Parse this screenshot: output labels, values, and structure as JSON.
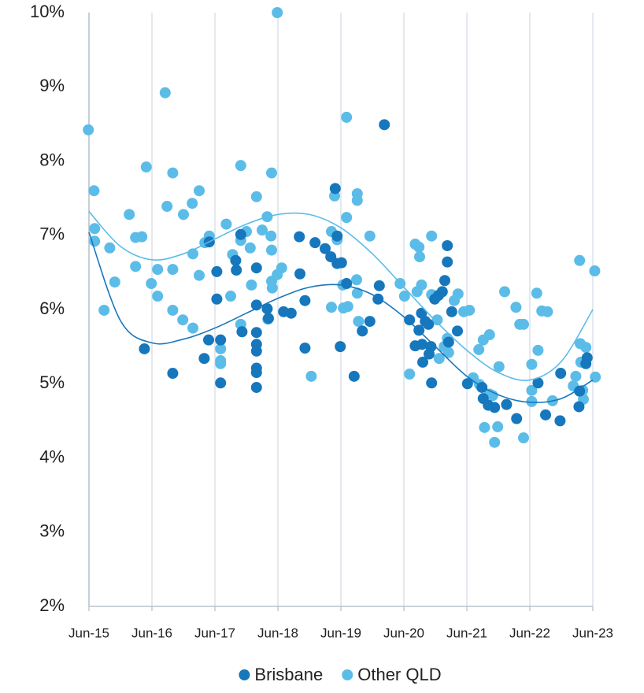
{
  "chart_data": {
    "type": "scatter",
    "xlim": [
      2015.5,
      2023.5
    ],
    "xticks": [
      {
        "value": 2015.5,
        "label": "Jun-15"
      },
      {
        "value": 2016.5,
        "label": "Jun-16"
      },
      {
        "value": 2017.5,
        "label": "Jun-17"
      },
      {
        "value": 2018.5,
        "label": "Jun-18"
      },
      {
        "value": 2019.5,
        "label": "Jun-19"
      },
      {
        "value": 2020.5,
        "label": "Jun-20"
      },
      {
        "value": 2021.5,
        "label": "Jun-21"
      },
      {
        "value": 2022.5,
        "label": "Jun-22"
      },
      {
        "value": 2023.5,
        "label": "Jun-23"
      }
    ],
    "ylim": [
      2,
      10
    ],
    "yticks": [
      {
        "value": 2,
        "label": "2%"
      },
      {
        "value": 3,
        "label": "3%"
      },
      {
        "value": 4,
        "label": "4%"
      },
      {
        "value": 5,
        "label": "5%"
      },
      {
        "value": 6,
        "label": "6%"
      },
      {
        "value": 7,
        "label": "7%"
      },
      {
        "value": 8,
        "label": "8%"
      },
      {
        "value": 9,
        "label": "9%"
      },
      {
        "value": 10,
        "label": "10%"
      }
    ],
    "grid": "vertical",
    "legend": "bottom",
    "series": [
      {
        "name": "Other QLD",
        "color": "#5bbce8",
        "x": [
          2015.49,
          2015.58,
          2015.59,
          2015.59,
          2015.74,
          2015.83,
          2015.91,
          2016.14,
          2016.24,
          2016.24,
          2016.34,
          2016.41,
          2016.49,
          2016.59,
          2016.59,
          2016.71,
          2016.74,
          2016.83,
          2016.83,
          2016.83,
          2016.99,
          2017.0,
          2017.14,
          2017.15,
          2017.15,
          2017.25,
          2017.25,
          2017.34,
          2017.41,
          2017.59,
          2017.59,
          2017.59,
          2017.68,
          2017.75,
          2017.78,
          2017.91,
          2017.91,
          2017.91,
          2018.0,
          2018.06,
          2018.08,
          2018.16,
          2018.25,
          2018.33,
          2018.34,
          2018.39,
          2018.4,
          2018.4,
          2018.4,
          2018.41,
          2018.49,
          2018.49,
          2018.56,
          2019.03,
          2019.35,
          2019.35,
          2019.4,
          2019.44,
          2019.53,
          2019.54,
          2019.59,
          2019.59,
          2019.61,
          2019.75,
          2019.76,
          2019.76,
          2019.76,
          2019.78,
          2019.96,
          2020.44,
          2020.51,
          2020.59,
          2020.68,
          2020.71,
          2020.74,
          2020.75,
          2020.78,
          2020.94,
          2020.94,
          2021.03,
          2021.06,
          2021.14,
          2021.19,
          2021.21,
          2021.3,
          2021.36,
          2021.45,
          2021.54,
          2021.6,
          2021.69,
          2021.7,
          2021.76,
          2021.78,
          2021.86,
          2021.86,
          2021.91,
          2021.94,
          2021.99,
          2022.01,
          2022.1,
          2022.28,
          2022.34,
          2022.4,
          2022.4,
          2022.53,
          2022.53,
          2022.53,
          2022.61,
          2022.63,
          2022.69,
          2022.78,
          2022.86,
          2023.19,
          2023.23,
          2023.29,
          2023.3,
          2023.31,
          2023.34,
          2023.35,
          2023.39,
          2023.53,
          2023.54
        ],
        "values": [
          8.42,
          7.6,
          7.09,
          6.92,
          5.99,
          6.83,
          6.37,
          7.28,
          6.58,
          6.97,
          6.98,
          7.92,
          6.35,
          6.18,
          6.54,
          8.92,
          7.39,
          7.84,
          6.54,
          5.99,
          5.86,
          7.28,
          7.43,
          5.75,
          6.75,
          7.6,
          6.46,
          6.9,
          6.99,
          5.31,
          5.27,
          5.47,
          7.15,
          6.18,
          6.74,
          7.94,
          6.93,
          5.8,
          7.05,
          6.83,
          6.33,
          7.52,
          7.07,
          7.25,
          5.87,
          6.99,
          7.84,
          6.8,
          6.38,
          6.29,
          10.0,
          6.47,
          6.56,
          5.1,
          7.05,
          6.03,
          7.53,
          6.94,
          6.33,
          6.02,
          8.59,
          7.24,
          6.04,
          6.4,
          7.56,
          7.47,
          6.22,
          5.84,
          6.99,
          6.35,
          6.18,
          5.13,
          6.88,
          6.24,
          6.84,
          6.71,
          6.33,
          6.99,
          6.2,
          5.86,
          5.34,
          5.5,
          5.61,
          5.42,
          6.12,
          6.21,
          5.97,
          5.99,
          5.08,
          5.46,
          4.99,
          5.59,
          4.41,
          5.66,
          4.86,
          4.84,
          4.21,
          4.42,
          5.23,
          6.24,
          6.03,
          5.8,
          5.8,
          4.27,
          5.26,
          4.91,
          4.76,
          6.22,
          5.45,
          5.98,
          5.97,
          4.77,
          4.97,
          5.1,
          6.66,
          5.54,
          5.29,
          4.91,
          4.79,
          5.49,
          6.52,
          5.09
        ],
        "trend": {
          "x": [
            2015.5,
            2016.0,
            2016.5,
            2017.0,
            2017.5,
            2018.0,
            2018.5,
            2019.0,
            2019.5,
            2020.0,
            2020.5,
            2021.0,
            2021.5,
            2022.0,
            2022.5,
            2023.0,
            2023.5
          ],
          "values": [
            7.32,
            6.85,
            6.67,
            6.75,
            6.95,
            7.15,
            7.28,
            7.28,
            7.1,
            6.75,
            6.3,
            5.85,
            5.45,
            5.15,
            5.05,
            5.3,
            6.0
          ]
        }
      },
      {
        "name": "Brisbane",
        "color": "#1677bd",
        "x": [
          2016.38,
          2016.83,
          2017.33,
          2017.4,
          2017.41,
          2017.53,
          2017.53,
          2017.59,
          2017.59,
          2017.83,
          2017.84,
          2017.91,
          2017.93,
          2018.16,
          2018.16,
          2018.16,
          2018.16,
          2018.16,
          2018.16,
          2018.16,
          2018.16,
          2018.33,
          2018.35,
          2018.59,
          2018.71,
          2018.84,
          2018.85,
          2018.93,
          2018.93,
          2019.09,
          2019.25,
          2019.34,
          2019.41,
          2019.44,
          2019.44,
          2019.49,
          2019.51,
          2019.59,
          2019.71,
          2019.84,
          2019.96,
          2020.09,
          2020.11,
          2020.19,
          2020.59,
          2020.68,
          2020.74,
          2020.78,
          2020.79,
          2020.8,
          2020.84,
          2020.89,
          2020.9,
          2020.93,
          2020.94,
          2020.99,
          2021.05,
          2021.11,
          2021.15,
          2021.19,
          2021.19,
          2021.21,
          2021.26,
          2021.35,
          2021.51,
          2021.74,
          2021.76,
          2021.84,
          2021.94,
          2022.13,
          2022.29,
          2022.63,
          2022.75,
          2022.98,
          2022.99,
          2023.28,
          2023.29,
          2023.39,
          2023.41
        ],
        "values": [
          5.47,
          5.14,
          5.34,
          5.59,
          6.91,
          6.14,
          6.51,
          5.59,
          5.01,
          6.66,
          6.53,
          7.01,
          5.7,
          6.56,
          6.06,
          5.69,
          5.53,
          5.44,
          5.21,
          5.15,
          4.95,
          6.01,
          5.88,
          5.97,
          5.95,
          6.98,
          6.48,
          6.12,
          5.48,
          6.9,
          6.82,
          6.71,
          7.63,
          6.99,
          6.62,
          5.5,
          6.63,
          6.35,
          5.1,
          5.71,
          5.84,
          6.14,
          6.32,
          8.49,
          5.86,
          5.51,
          5.72,
          5.95,
          5.53,
          5.29,
          5.84,
          5.8,
          5.4,
          5.5,
          5.01,
          6.14,
          6.19,
          6.24,
          6.39,
          6.86,
          6.64,
          5.56,
          5.97,
          5.71,
          5.0,
          4.95,
          4.8,
          4.71,
          4.68,
          4.72,
          4.53,
          5.01,
          4.58,
          4.5,
          5.14,
          4.69,
          4.9,
          5.27,
          5.35
        ],
        "trend": {
          "x": [
            2015.5,
            2016.0,
            2016.5,
            2017.0,
            2017.5,
            2018.0,
            2018.5,
            2019.0,
            2019.5,
            2020.0,
            2020.5,
            2021.0,
            2021.5,
            2022.0,
            2022.5,
            2023.0,
            2023.5
          ],
          "values": [
            7.04,
            5.85,
            5.55,
            5.6,
            5.75,
            5.95,
            6.15,
            6.3,
            6.33,
            6.2,
            5.9,
            5.5,
            5.1,
            4.85,
            4.75,
            4.8,
            5.05
          ]
        }
      }
    ]
  }
}
